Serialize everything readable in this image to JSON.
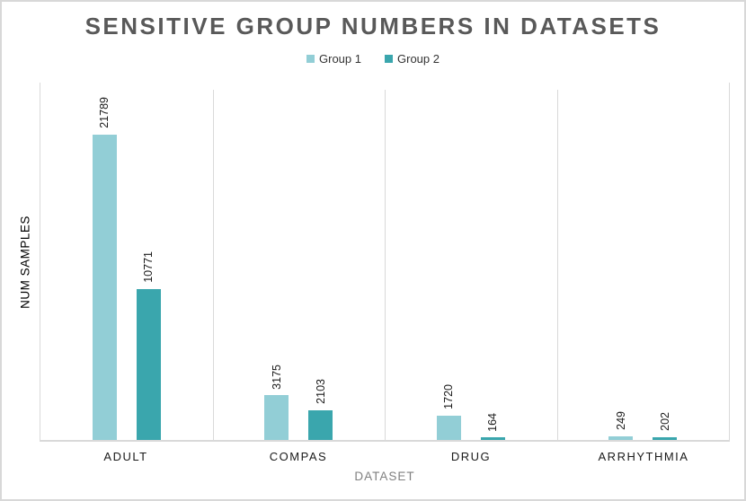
{
  "title": "SENSITIVE GROUP NUMBERS IN DATASETS",
  "chart_data": {
    "type": "bar",
    "title": "SENSITIVE GROUP NUMBERS IN DATASETS",
    "categories": [
      "ADULT",
      "COMPAS",
      "DRUG",
      "ARRHYTHMIA"
    ],
    "series": [
      {
        "name": "Group 1",
        "color": "#92ced6",
        "values": [
          21789,
          3175,
          1720,
          249
        ]
      },
      {
        "name": "Group 2",
        "color": "#3aa6ad",
        "values": [
          10771,
          2103,
          164,
          202
        ]
      }
    ],
    "xlabel": "DATASET",
    "ylabel": "NUM SAMPLES",
    "ylim": [
      0,
      25600
    ],
    "y_ticks_visible": false,
    "grid": "vertical-category-separators",
    "legend_position": "top",
    "bar_value_labels": "rotated-90-above-bars"
  },
  "colors": {
    "group1": "#92ced6",
    "group2": "#3aa6ad",
    "axis_line": "#d9d9d9",
    "title_text": "#595959",
    "axis_title_text": "#808080",
    "category_text": "#1a1a1a",
    "frame_border": "#d8d8d8"
  }
}
